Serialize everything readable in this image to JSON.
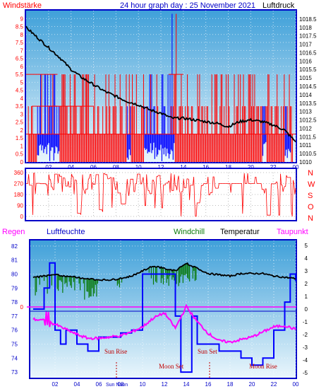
{
  "title": "24 hour graph day : 25 November 2021",
  "colors": {
    "sky_top": "#3fa0d9",
    "sky_bottom": "#eaf6fc",
    "frame": "#0000c8",
    "wind_red": "#ff0000",
    "wind_blue": "#0000ff",
    "pressure": "#000000",
    "windchill": "#0a7a0a",
    "dewpoint": "#ff00ff",
    "rain": "#ff0000",
    "humidity": "#0000ff",
    "title_text": "#0000c8"
  },
  "labels": {
    "windstaerke": "Windstärke",
    "luftdruck": "Luftdruck",
    "regen": "Regen",
    "luftfeuchte": "Luftfeuchte",
    "windchill": "Windchill",
    "temperatur": "Temperatur",
    "taupunkt": "Taupunkt",
    "sun_rise": "Sun Rise",
    "sun_set": "Sun Set",
    "moon_set": "Moon Set",
    "moon_rise": "Moon Rise",
    "noon": "Sun Noon",
    "direction_letters": [
      "N",
      "W",
      "S",
      "O",
      "N"
    ]
  },
  "chart_data": [
    {
      "type": "line",
      "name": "wind-pressure",
      "x_ticks": [
        "02",
        "04",
        "06",
        "08",
        "10",
        "12",
        "14",
        "16",
        "18",
        "20",
        "22",
        "00"
      ],
      "y_left_ticks": [
        "0",
        "0.5",
        "1",
        "1.5",
        "2",
        "2.5",
        "3",
        "3.5",
        "4",
        "4.5",
        "5",
        "5.5",
        "6",
        "6.5",
        "7",
        "7.5",
        "8",
        "8.5",
        "9"
      ],
      "y_right_ticks": [
        "1010",
        "1010.5",
        "1011",
        "1011.5",
        "1012",
        "1012.5",
        "1013",
        "1013.5",
        "1014",
        "1014.5",
        "1015",
        "1015.5",
        "1016",
        "1016.5",
        "1017",
        "1017.5",
        "1018",
        "1018.5"
      ],
      "y_left_range": [
        0,
        9.5
      ],
      "y_right_range": [
        1010,
        1019
      ],
      "pressure": {
        "hours": [
          0,
          1,
          2,
          3,
          4,
          5,
          6,
          7,
          8,
          9,
          10,
          11,
          12,
          13,
          14,
          15,
          16,
          17,
          18,
          19,
          20,
          21,
          22,
          23,
          24
        ],
        "values": [
          1018,
          1017.4,
          1016.8,
          1016.2,
          1015.5,
          1015,
          1014.6,
          1014.2,
          1013.9,
          1013.6,
          1013.4,
          1013.1,
          1012.9,
          1012.6,
          1012.6,
          1012.5,
          1012.4,
          1012.3,
          1012.1,
          1012.4,
          1012.5,
          1012.4,
          1012.2,
          1011.9,
          1011.2
        ]
      }
    },
    {
      "type": "line",
      "name": "wind-direction",
      "y_ticks": [
        "0",
        "90",
        "180",
        "270",
        "360"
      ],
      "y_range": [
        0,
        360
      ]
    },
    {
      "type": "line",
      "name": "humidity-temperature",
      "y_left_ticks": [
        "73",
        "74",
        "75",
        "76",
        "77",
        "78",
        "79",
        "80",
        "81",
        "82"
      ],
      "y_right_ticks": [
        "-5",
        "-4",
        "-3",
        "-2",
        "-1",
        "0",
        "1",
        "2",
        "3",
        "4",
        "5"
      ],
      "y_left_range": [
        72.6,
        82.4
      ],
      "y_right_range": [
        -5.4,
        5.4
      ],
      "rain_value_label": "0",
      "temperature": {
        "hours": [
          0,
          1,
          2,
          3,
          4,
          5,
          6,
          7,
          8,
          9,
          10,
          11,
          12,
          13,
          14,
          15,
          16,
          17,
          18,
          19,
          20,
          21,
          22,
          23,
          24
        ],
        "values": [
          2.5,
          2.6,
          2.7,
          2.6,
          2.5,
          2.4,
          2.3,
          2.3,
          2.4,
          2.6,
          3.0,
          3.4,
          3.2,
          3.0,
          3.6,
          3.2,
          2.8,
          2.7,
          2.6,
          2.8,
          2.8,
          2.8,
          2.6,
          2.5,
          2.4
        ]
      },
      "dewpoint": {
        "hours": [
          0,
          1,
          2,
          3,
          4,
          5,
          6,
          7,
          8,
          9,
          10,
          11,
          12,
          13,
          14,
          15,
          16,
          17,
          18,
          19,
          20,
          21,
          22,
          23,
          24
        ],
        "values": [
          -0.8,
          -0.9,
          -1.2,
          -1.6,
          -2.0,
          -2.3,
          -2.3,
          -2.2,
          -2.1,
          -1.8,
          -1.4,
          -0.7,
          -0.3,
          -1.5,
          0.2,
          -1.0,
          -1.9,
          -2.5,
          -2.6,
          -2.4,
          -2.2,
          -1.8,
          -1.4,
          -1.3,
          -1.6
        ]
      },
      "humidity": {
        "hours": [
          0,
          1,
          1.5,
          2,
          2.5,
          3,
          4,
          5,
          6,
          7,
          8,
          9,
          10,
          11,
          12,
          13,
          13.5,
          14,
          14.5,
          15,
          16,
          17,
          18,
          19,
          20,
          21,
          22,
          23,
          23.5,
          24
        ],
        "values": [
          77.5,
          79,
          80.8,
          76,
          75,
          76,
          75,
          74.5,
          75.5,
          75.5,
          75.8,
          76,
          80,
          80,
          80,
          77,
          73,
          73,
          77,
          75,
          75,
          74.5,
          74.5,
          74,
          73.5,
          74,
          76,
          78,
          80,
          79.5
        ]
      }
    }
  ]
}
